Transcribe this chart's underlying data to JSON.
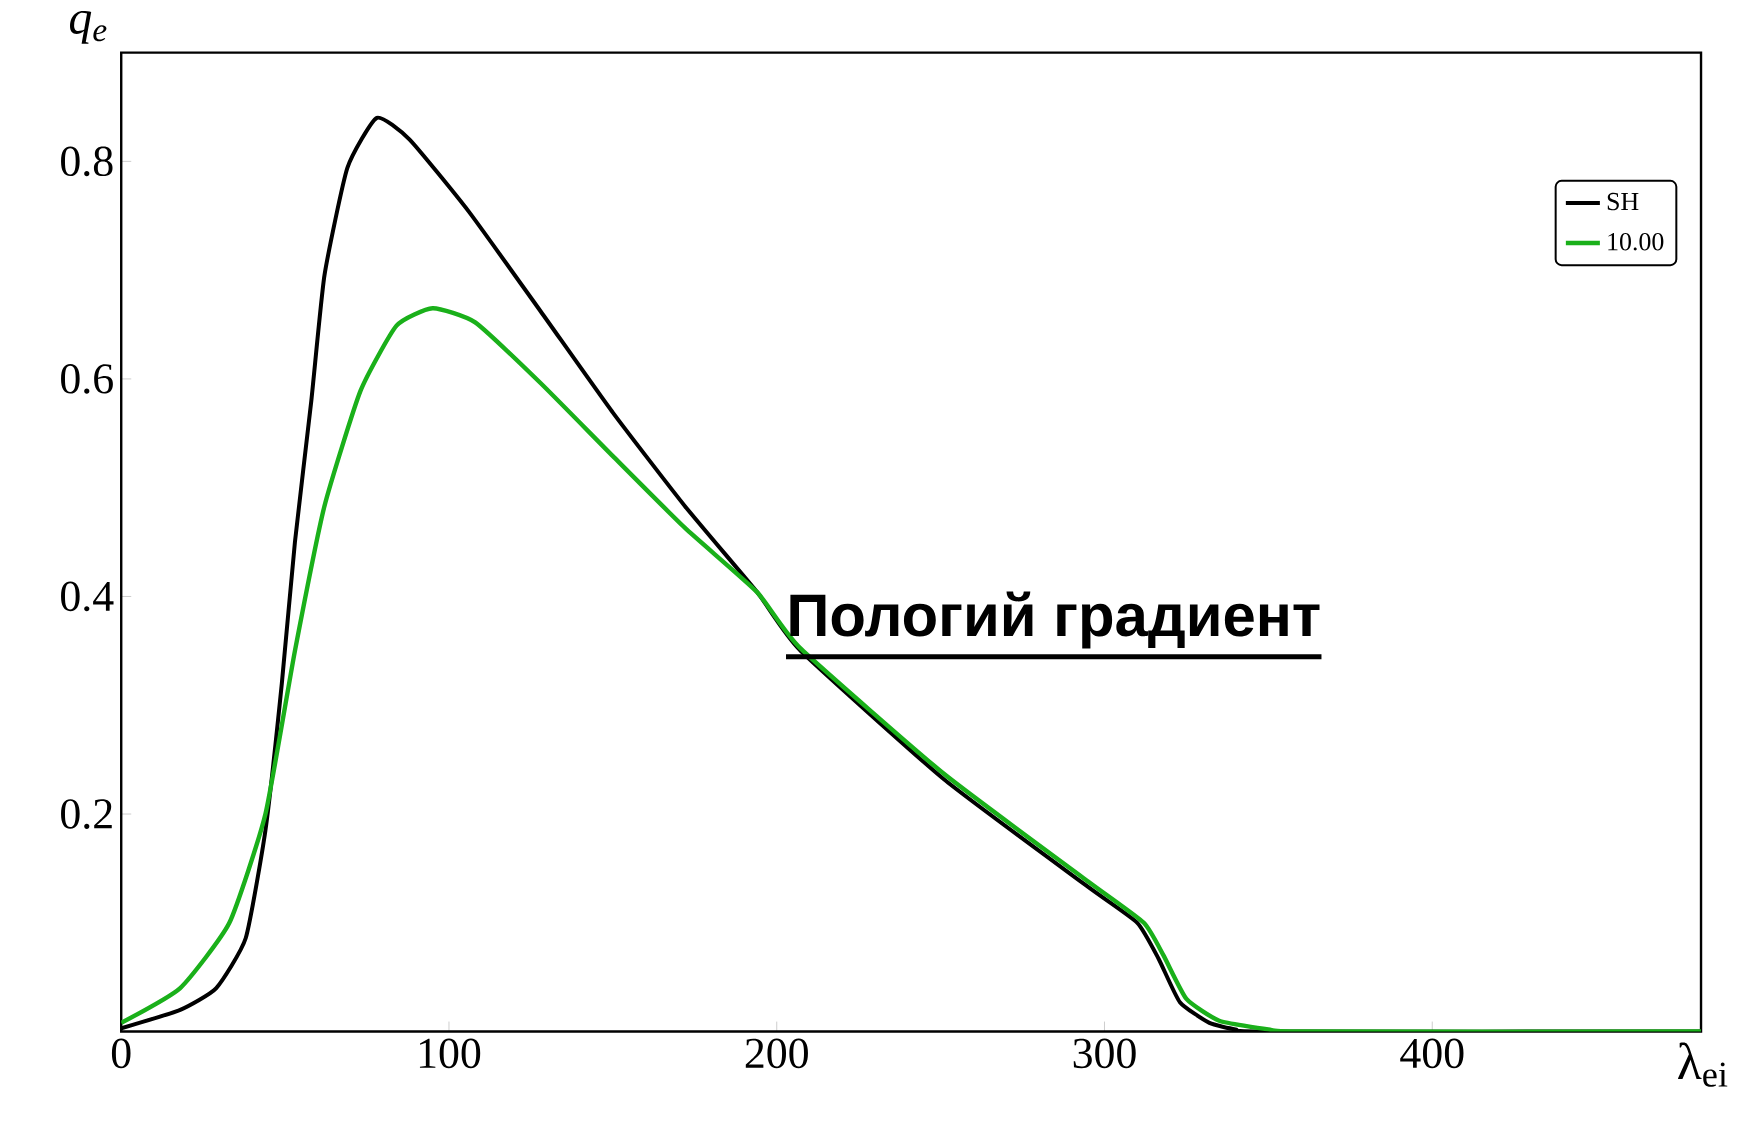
{
  "chart_data": {
    "type": "line",
    "xlabel": "λ$_{ei}$",
    "ylabel": "q$_{e}$",
    "xlim": [
      0,
      482
    ],
    "ylim": [
      0,
      0.9
    ],
    "xticks": [
      0,
      100,
      200,
      300,
      400
    ],
    "yticks": [
      0.2,
      0.4,
      0.6,
      0.8
    ],
    "legend": "top right",
    "grid": false,
    "line_style": "solid",
    "annotations": [
      "Пологий градиент"
    ],
    "series": [
      {
        "name": "SH",
        "color": "#000000",
        "x": [
          0,
          18,
          29,
          38,
          44,
          49,
          53,
          58,
          62,
          69,
          78,
          88,
          106,
          128,
          150,
          172,
          194,
          207,
          251,
          295,
          310,
          316.5,
          323,
          332,
          340,
          349,
          482
        ],
        "values": [
          0.003,
          0.02,
          0.04,
          0.086,
          0.185,
          0.32,
          0.45,
          0.58,
          0.695,
          0.794,
          0.84,
          0.82,
          0.754,
          0.662,
          0.569,
          0.483,
          0.404,
          0.351,
          0.232,
          0.133,
          0.1,
          0.067,
          0.027,
          0.008,
          0.002,
          0,
          0
        ]
      },
      {
        "name": "10.00",
        "color": "#1ab01a",
        "x": [
          0,
          18,
          33,
          44,
          53,
          62,
          73,
          84,
          95,
          108,
          128,
          150,
          172,
          194,
          207,
          251,
          295,
          312,
          318,
          325,
          335,
          350,
          360,
          482
        ],
        "values": [
          0.008,
          0.04,
          0.1,
          0.2,
          0.35,
          0.483,
          0.589,
          0.649,
          0.665,
          0.652,
          0.596,
          0.529,
          0.463,
          0.404,
          0.353,
          0.237,
          0.138,
          0.1,
          0.07,
          0.03,
          0.01,
          0.002,
          0,
          0
        ]
      }
    ]
  }
}
